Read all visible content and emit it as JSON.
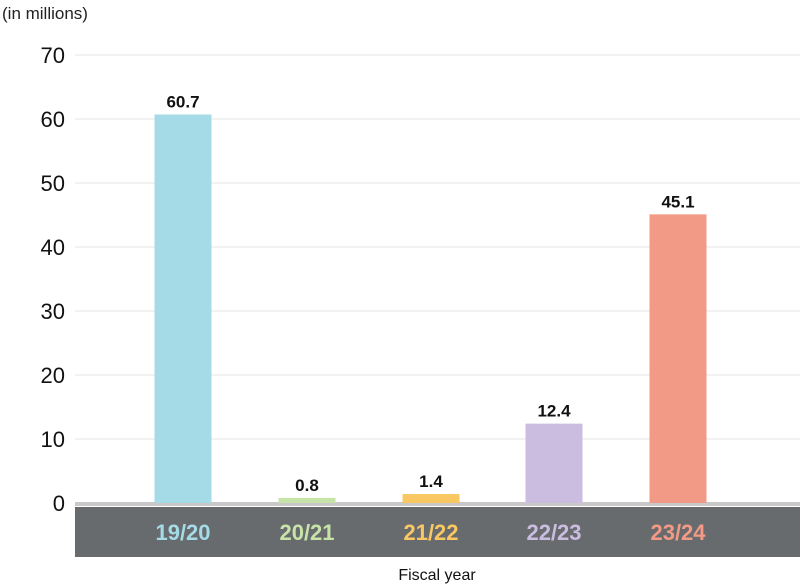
{
  "chart_data": {
    "type": "bar",
    "unit_label": "(in millions)",
    "xlabel": "Fiscal year",
    "ylabel": "",
    "categories": [
      "19/20",
      "20/21",
      "21/22",
      "22/23",
      "23/24"
    ],
    "values": [
      60.7,
      0.8,
      1.4,
      12.4,
      45.1
    ],
    "data_labels": [
      "60.7",
      "0.8",
      "1.4",
      "12.4",
      "45.1"
    ],
    "colors": [
      "#a4dbe7",
      "#c8e3a8",
      "#f9c862",
      "#cbbddf",
      "#f29a85"
    ],
    "ylim": [
      0,
      70
    ],
    "yticks": [
      0,
      10,
      20,
      30,
      40,
      50,
      60,
      70
    ],
    "grid": true,
    "legend": "none",
    "category_band_color": "#686b6e"
  }
}
